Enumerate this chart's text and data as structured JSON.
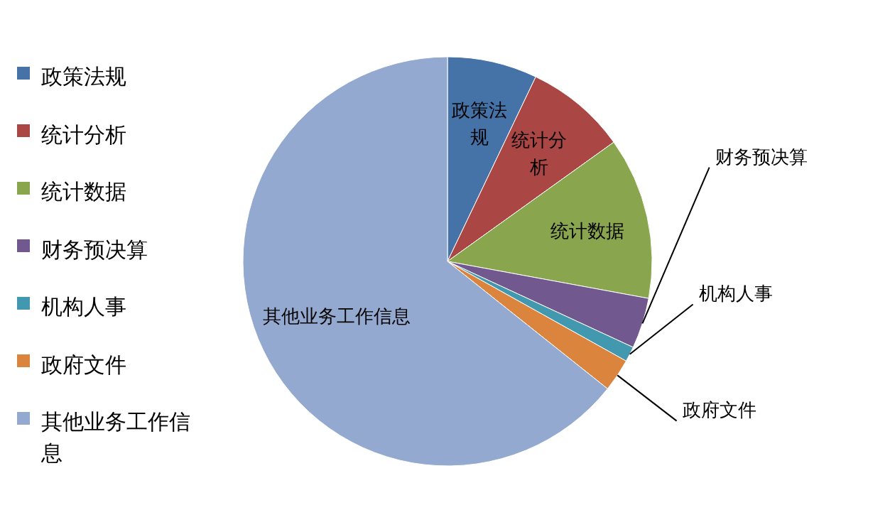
{
  "chart_data": {
    "type": "pie",
    "categories": [
      "政策法规",
      "统计分析",
      "统计数据",
      "财务预决算",
      "机构人事",
      "政府文件",
      "其他业务工作信息"
    ],
    "values": [
      7.1,
      8.0,
      12.8,
      4.0,
      1.2,
      2.6,
      64.3
    ],
    "colors": [
      "#4572a7",
      "#aa4643",
      "#89a54e",
      "#71588f",
      "#4198af",
      "#db843d",
      "#93a9cf"
    ],
    "legend": "left"
  }
}
